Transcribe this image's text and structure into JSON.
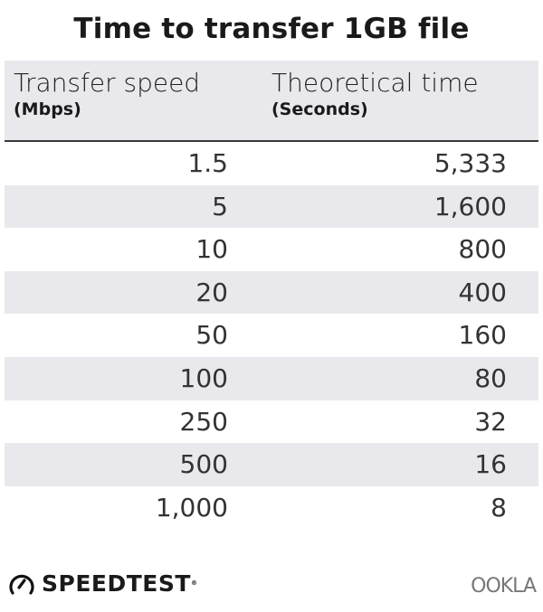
{
  "chart_data": {
    "type": "table",
    "title": "Time to transfer 1GB file",
    "columns": [
      {
        "label": "Transfer speed",
        "unit": "(Mbps)"
      },
      {
        "label": "Theoretical time",
        "unit": "(Seconds)"
      }
    ],
    "rows": [
      [
        "1.5",
        "5,333"
      ],
      [
        "5",
        "1,600"
      ],
      [
        "10",
        "800"
      ],
      [
        "20",
        "400"
      ],
      [
        "50",
        "160"
      ],
      [
        "100",
        "80"
      ],
      [
        "250",
        "32"
      ],
      [
        "500",
        "16"
      ],
      [
        "1,000",
        "8"
      ]
    ],
    "colors": {
      "header_band": "#e9e8ec",
      "alt_row": "#e9e8ec",
      "divider": "#3a3a3a"
    }
  },
  "footer": {
    "left_logo": "SPEEDTEST",
    "left_icon": "speedometer-icon",
    "right_logo": "OOKLA"
  }
}
